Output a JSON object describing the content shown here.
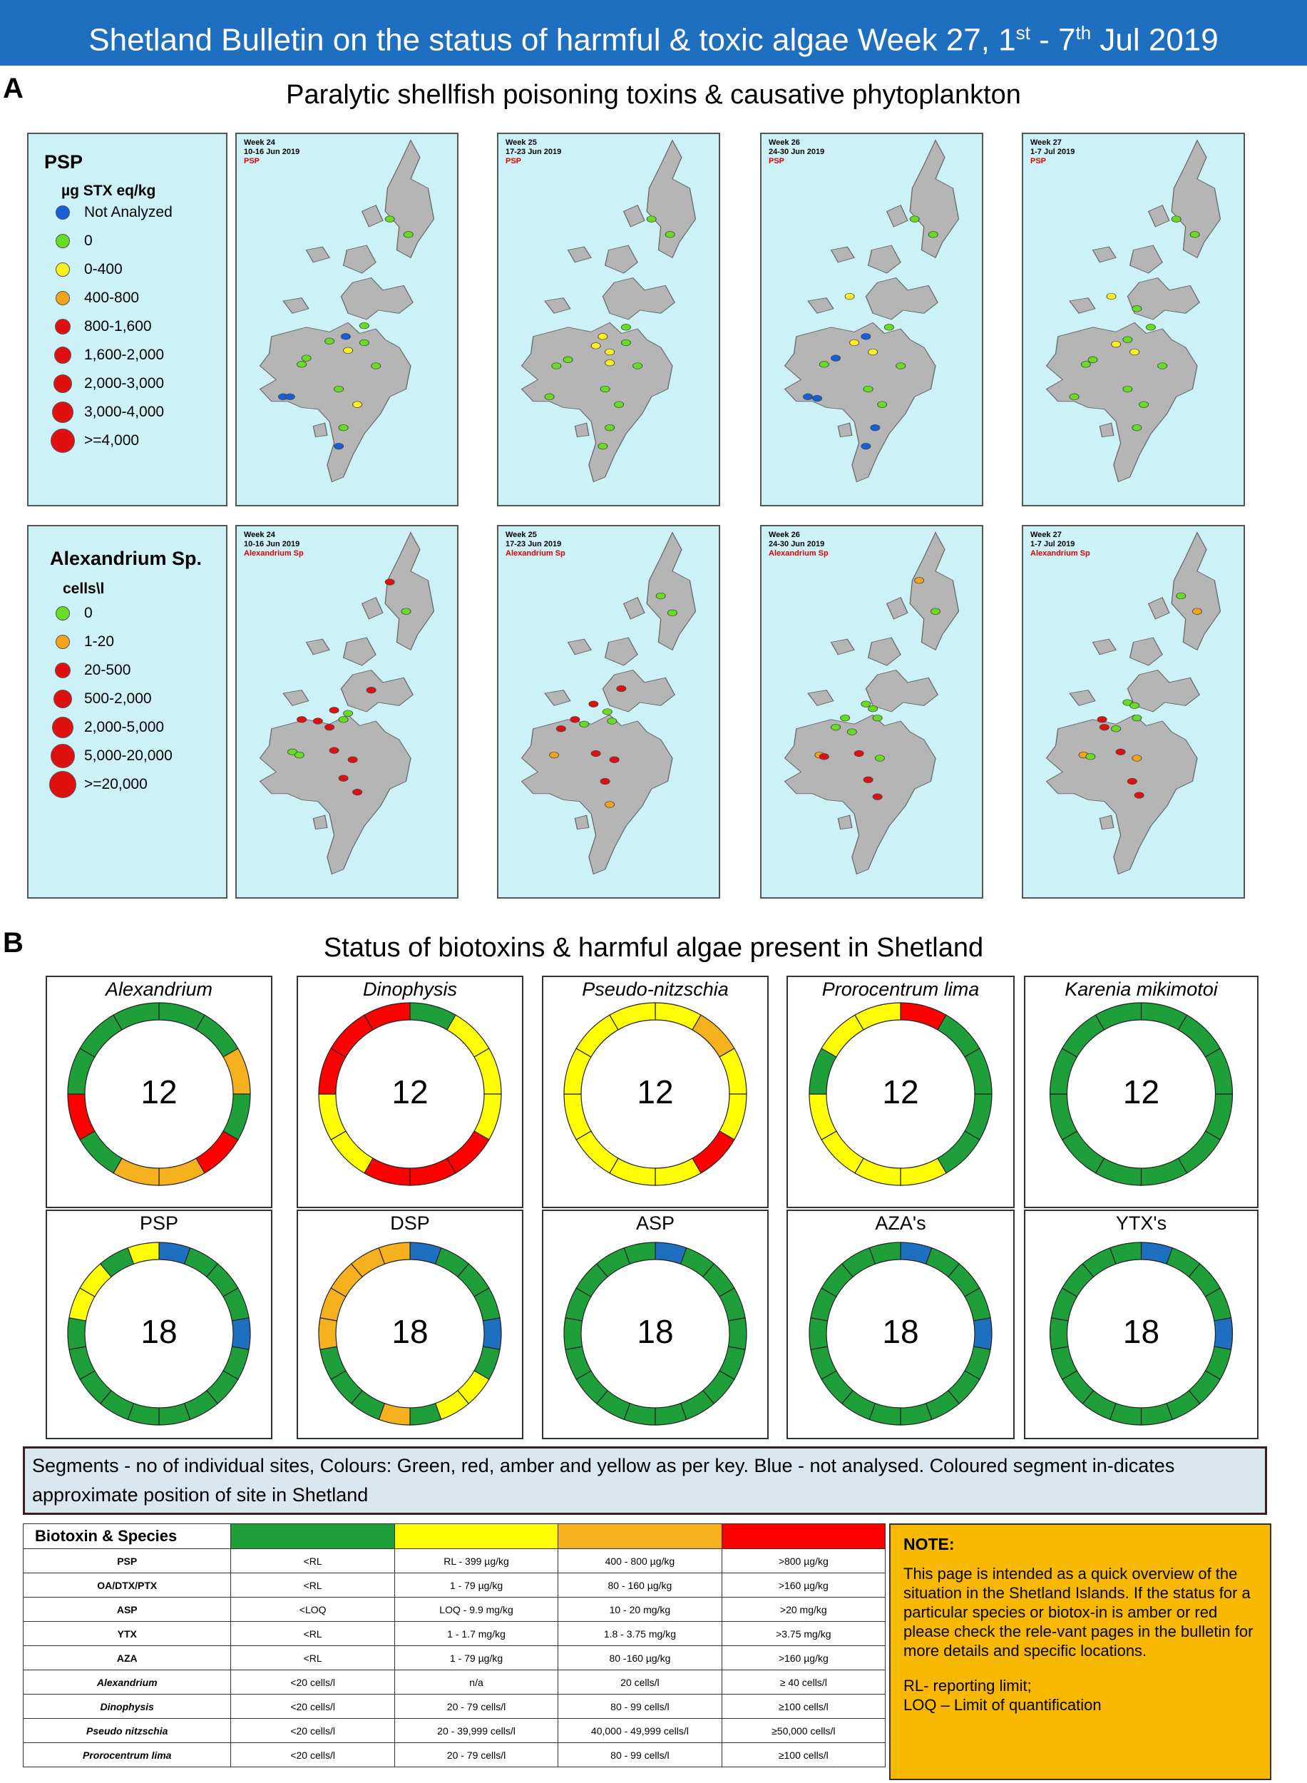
{
  "banner": {
    "title_start": "Shetland Bulletin on the status of harmful & toxic algae  Week 27, 1",
    "sup1": "st",
    "mid": " - 7",
    "sup2": "th",
    "title_end": " Jul 2019"
  },
  "panel_a": {
    "letter": "A",
    "title": "Paralytic shellfish poisoning toxins & causative phytoplankton",
    "psp_legend": {
      "title": "PSP",
      "unit": "µg STX eq/kg",
      "items": [
        {
          "label": "Not Analyzed",
          "color": "#1560d8"
        },
        {
          "label": "0",
          "color": "#66dd22"
        },
        {
          "label": "0-400",
          "color": "#ffee22"
        },
        {
          "label": "400-800",
          "color": "#f5a21b"
        },
        {
          "label": "800-1,600",
          "color": "#e01010"
        },
        {
          "label": "1,600-2,000",
          "color": "#e01010"
        },
        {
          "label": "2,000-3,000",
          "color": "#e01010"
        },
        {
          "label": "3,000-4,000",
          "color": "#e01010"
        },
        {
          "label": ">=4,000",
          "color": "#e01010"
        }
      ]
    },
    "alex_legend": {
      "title": "Alexandrium Sp.",
      "unit": "cells\\l",
      "items": [
        {
          "label": "0",
          "color": "#66dd22"
        },
        {
          "label": "1-20",
          "color": "#f5a21b"
        },
        {
          "label": "20-500",
          "color": "#e01010"
        },
        {
          "label": "500-2,000",
          "color": "#e01010"
        },
        {
          "label": "2,000-5,000",
          "color": "#e01010"
        },
        {
          "label": "5,000-20,000",
          "color": "#e01010"
        },
        {
          "label": ">=20,000",
          "color": "#e01010"
        }
      ]
    },
    "psp_maps": [
      {
        "week": "Week 24",
        "dates": "10-16 Jun 2019",
        "tag": "PSP"
      },
      {
        "week": "Week 25",
        "dates": "17-23 Jun 2019",
        "tag": "PSP"
      },
      {
        "week": "Week 26",
        "dates": "24-30 Jun 2019",
        "tag": "PSP"
      },
      {
        "week": "Week 27",
        "dates": "1-7 Jul 2019",
        "tag": "PSP"
      }
    ],
    "alex_maps": [
      {
        "week": "Week 24",
        "dates": "10-16 Jun 2019",
        "tag": "Alexandrium Sp"
      },
      {
        "week": "Week 25",
        "dates": "17-23 Jun 2019",
        "tag": "Alexandrium Sp"
      },
      {
        "week": "Week 26",
        "dates": "24-30 Jun 2019",
        "tag": "Alexandrium Sp"
      },
      {
        "week": "Week 27",
        "dates": "1-7 Jul 2019",
        "tag": "Alexandrium Sp"
      }
    ]
  },
  "panel_b": {
    "letter": "B",
    "title": "Status of biotoxins & harmful algae present in Shetland",
    "species": [
      {
        "name": "Alexandrium",
        "count": "12",
        "segments": [
          "green",
          "green",
          "amber",
          "green",
          "red",
          "amber",
          "amber",
          "green",
          "red",
          "green",
          "green",
          "green"
        ]
      },
      {
        "name": "Dinophysis",
        "count": "12",
        "segments": [
          "green",
          "yellow",
          "yellow",
          "yellow",
          "red",
          "red",
          "red",
          "yellow",
          "yellow",
          "red",
          "red",
          "red"
        ]
      },
      {
        "name": "Pseudo-nitzschia",
        "count": "12",
        "segments": [
          "yellow",
          "amber",
          "yellow",
          "yellow",
          "red",
          "yellow",
          "yellow",
          "yellow",
          "yellow",
          "yellow",
          "yellow",
          "yellow"
        ]
      },
      {
        "name": "Prorocentrum lima",
        "count": "12",
        "segments": [
          "red",
          "green",
          "green",
          "green",
          "green",
          "yellow",
          "yellow",
          "yellow",
          "yellow",
          "green",
          "yellow",
          "yellow"
        ]
      },
      {
        "name": "Karenia mikimotoi",
        "count": "12",
        "segments": [
          "green",
          "green",
          "green",
          "green",
          "green",
          "green",
          "green",
          "green",
          "green",
          "green",
          "green",
          "green"
        ]
      }
    ],
    "toxins": [
      {
        "name": "PSP",
        "count": "18",
        "segments": [
          "blue",
          "green",
          "green",
          "green",
          "blue",
          "green",
          "green",
          "green",
          "green",
          "green",
          "green",
          "green",
          "green",
          "green",
          "yellow",
          "yellow",
          "green",
          "yellow"
        ]
      },
      {
        "name": "DSP",
        "count": "18",
        "segments": [
          "blue",
          "green",
          "green",
          "green",
          "blue",
          "green",
          "yellow",
          "yellow",
          "green",
          "amber",
          "green",
          "green",
          "green",
          "amber",
          "amber",
          "amber",
          "amber",
          "amber"
        ]
      },
      {
        "name": "ASP",
        "count": "18",
        "segments": [
          "blue",
          "green",
          "green",
          "green",
          "green",
          "green",
          "green",
          "green",
          "green",
          "green",
          "green",
          "green",
          "green",
          "green",
          "green",
          "green",
          "green",
          "green"
        ]
      },
      {
        "name": "AZA's",
        "count": "18",
        "segments": [
          "blue",
          "green",
          "green",
          "green",
          "blue",
          "green",
          "green",
          "green",
          "green",
          "green",
          "green",
          "green",
          "green",
          "green",
          "green",
          "green",
          "green",
          "green"
        ]
      },
      {
        "name": "YTX's",
        "count": "18",
        "segments": [
          "blue",
          "green",
          "green",
          "green",
          "blue",
          "green",
          "green",
          "green",
          "green",
          "green",
          "green",
          "green",
          "green",
          "green",
          "green",
          "green",
          "green",
          "green"
        ]
      }
    ],
    "segment_note": "Segments - no of individual sites,  Colours: Green, red, amber and yellow as per key. Blue - not analysed. Coloured segment in-dicates approximate position of site in Shetland",
    "colors": {
      "green": "#1e9f3a",
      "yellow": "#ffff00",
      "amber": "#f5b21e",
      "red": "#ff0000",
      "blue": "#1f6fc0"
    }
  },
  "key_table": {
    "header": "Biotoxin & Species",
    "header_colors": [
      "#1e9f3a",
      "#ffff00",
      "#f5b21e",
      "#ff0000"
    ],
    "rows": [
      {
        "name": "PSP",
        "italic": false,
        "cells": [
          "<RL",
          "RL - 399 µg/kg",
          "400 - 800 µg/kg",
          ">800 µg/kg"
        ]
      },
      {
        "name": "OA/DTX/PTX",
        "italic": false,
        "cells": [
          "<RL",
          "1 - 79 µg/kg",
          "80 - 160 µg/kg",
          ">160 µg/kg"
        ]
      },
      {
        "name": "ASP",
        "italic": false,
        "cells": [
          "<LOQ",
          "LOQ - 9.9 mg/kg",
          "10 - 20 mg/kg",
          ">20 mg/kg"
        ]
      },
      {
        "name": "YTX",
        "italic": false,
        "cells": [
          "<RL",
          "1 - 1.7 mg/kg",
          "1.8 - 3.75 mg/kg",
          ">3.75 mg/kg"
        ]
      },
      {
        "name": "AZA",
        "italic": false,
        "cells": [
          "<RL",
          "1 - 79 µg/kg",
          "80 -160 µg/kg",
          ">160 µg/kg"
        ]
      },
      {
        "name": "Alexandrium",
        "italic": true,
        "cells": [
          "<20 cells/l",
          "n/a",
          "20 cells/l",
          "≥ 40 cells/l"
        ]
      },
      {
        "name": "Dinophysis",
        "italic": true,
        "cells": [
          "<20 cells/l",
          "20 - 79 cells/l",
          "80 - 99 cells/l",
          "≥100 cells/l"
        ]
      },
      {
        "name": "Pseudo nitzschia",
        "italic": true,
        "cells": [
          "<20 cells/l",
          "20 - 39,999 cells/l",
          "40,000 - 49,999 cells/l",
          "≥50,000 cells/l"
        ]
      },
      {
        "name": "Prorocentrum lima",
        "italic": true,
        "cells": [
          "<20 cells/l",
          "20 - 79 cells/l",
          "80 - 99 cells/l",
          "≥100 cells/l"
        ]
      }
    ]
  },
  "note": {
    "title": "NOTE:",
    "body": "This page is intended as a quick overview of the situation in the Shetland Islands. If the status for a particular species or biotox-in is amber or red please check the rele-vant pages in the bulletin for more details and specific locations.",
    "rl": "RL- reporting limit;",
    "loq": "LOQ – Limit of quantification"
  }
}
